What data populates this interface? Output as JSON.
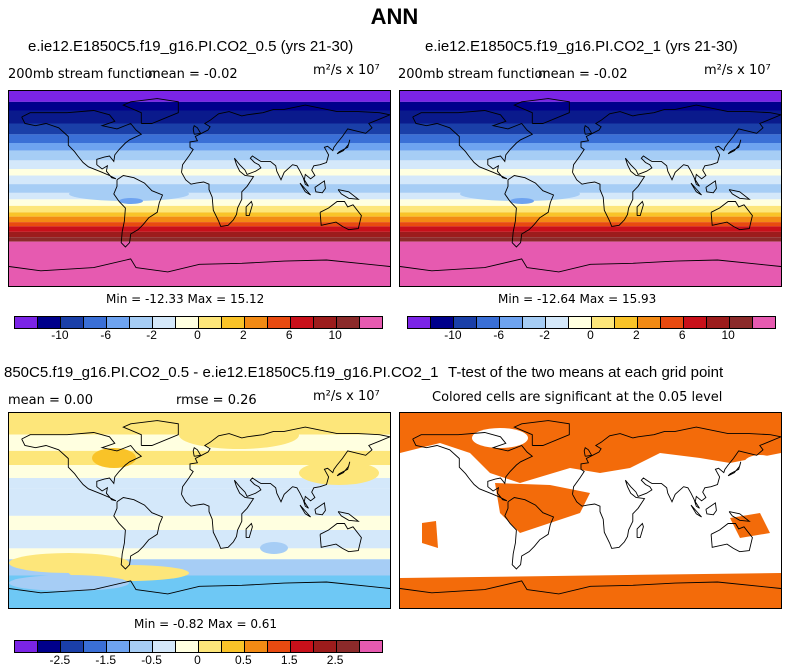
{
  "chart_data": [
    {
      "type": "heatmap",
      "title": "ANN",
      "subtitle": "e.ie12.E1850C5.f19_g16.PI.CO2_0.5 (yrs 21-30)",
      "variable": "200mb stream function",
      "mean_text": "mean =   -0.02",
      "units_text": "m²/s x 10⁷",
      "min": -12.33,
      "max": 15.12,
      "minmax_text": "Min = -12.33 Max =  15.12",
      "colorbar_ticks": [
        "-10",
        "-6",
        "-2",
        "0",
        "2",
        "6",
        "10"
      ],
      "colorbar_colors": [
        "#7b24e6",
        "#00008b",
        "#1a3fa8",
        "#3a6fd6",
        "#6ea3f0",
        "#a6cdf5",
        "#d4e8fa",
        "#ffffe0",
        "#fde67a",
        "#f9c328",
        "#f28a14",
        "#e84a10",
        "#c8101a",
        "#9c1c1c",
        "#8b2a2a",
        "#e65ab0"
      ]
    },
    {
      "type": "heatmap",
      "subtitle": "e.ie12.E1850C5.f19_g16.PI.CO2_1 (yrs 21-30)",
      "variable": "200mb stream function",
      "mean_text": "mean =   -0.02",
      "units_text": "m²/s x 10⁷",
      "min": -12.64,
      "max": 15.93,
      "minmax_text": "Min = -12.64 Max =  15.93",
      "colorbar_ticks": [
        "-10",
        "-6",
        "-2",
        "0",
        "2",
        "6",
        "10"
      ]
    },
    {
      "type": "heatmap",
      "subtitle": "850C5.f19_g16.PI.CO2_0.5 - e.ie12.E1850C5.f19_g16.PI.CO2_1",
      "mean_text": "mean =    0.00",
      "rmse_text": "rmse =    0.26",
      "units_text": "m²/s x 10⁷",
      "min": -0.82,
      "max": 0.61,
      "minmax_text": "Min = -0.82 Max =   0.61",
      "colorbar_ticks": [
        "-2.5",
        "-1.5",
        "-0.5",
        "0",
        "0.5",
        "1.5",
        "2.5"
      ]
    },
    {
      "type": "heatmap",
      "subtitle": "T-test of the two means at each grid point",
      "note": "Colored cells are significant at the 0.05 level",
      "significant_color": "#f36b0a"
    }
  ]
}
